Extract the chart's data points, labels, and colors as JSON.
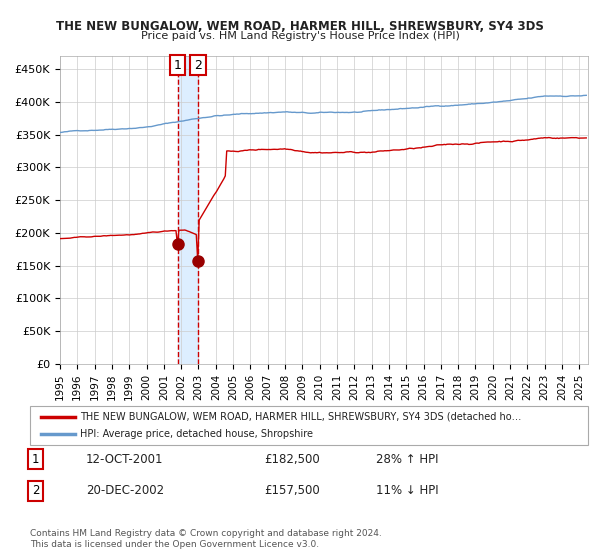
{
  "title1": "THE NEW BUNGALOW, WEM ROAD, HARMER HILL, SHREWSBURY, SY4 3DS",
  "title2": "Price paid vs. HM Land Registry's House Price Index (HPI)",
  "ylim": [
    0,
    470000
  ],
  "yticks": [
    0,
    50000,
    100000,
    150000,
    200000,
    250000,
    300000,
    350000,
    400000,
    450000
  ],
  "ytick_labels": [
    "£0",
    "£50K",
    "£100K",
    "£150K",
    "£200K",
    "£250K",
    "£300K",
    "£350K",
    "£400K",
    "£450K"
  ],
  "xlim_start": 1995.0,
  "xlim_end": 2025.5,
  "hpi_color": "#6699cc",
  "price_color": "#cc0000",
  "sale1_date": 2001.79,
  "sale1_price": 182500,
  "sale2_date": 2002.97,
  "sale2_price": 157500,
  "sale1_label": "1",
  "sale2_label": "2",
  "vspan_start": 2001.79,
  "vspan_end": 2002.97,
  "vspan_color": "#ddeeff",
  "vline_color": "#cc0000",
  "legend_line1": "THE NEW BUNGALOW, WEM ROAD, HARMER HILL, SHREWSBURY, SY4 3DS (detached ho…",
  "legend_line2": "HPI: Average price, detached house, Shropshire",
  "annotation1_label": "1",
  "annotation1_date": "12-OCT-2001",
  "annotation1_price": "£182,500",
  "annotation1_hpi": "28% ↑ HPI",
  "annotation2_label": "2",
  "annotation2_date": "20-DEC-2002",
  "annotation2_price": "£157,500",
  "annotation2_hpi": "11% ↓ HPI",
  "footer": "Contains HM Land Registry data © Crown copyright and database right 2024.\nThis data is licensed under the Open Government Licence v3.0.",
  "bg_color": "#ffffff",
  "grid_color": "#cccccc",
  "marker_color": "#990000",
  "marker_size": 8,
  "label_box_color": "#ffffff",
  "label_box_edge": "#cc0000"
}
